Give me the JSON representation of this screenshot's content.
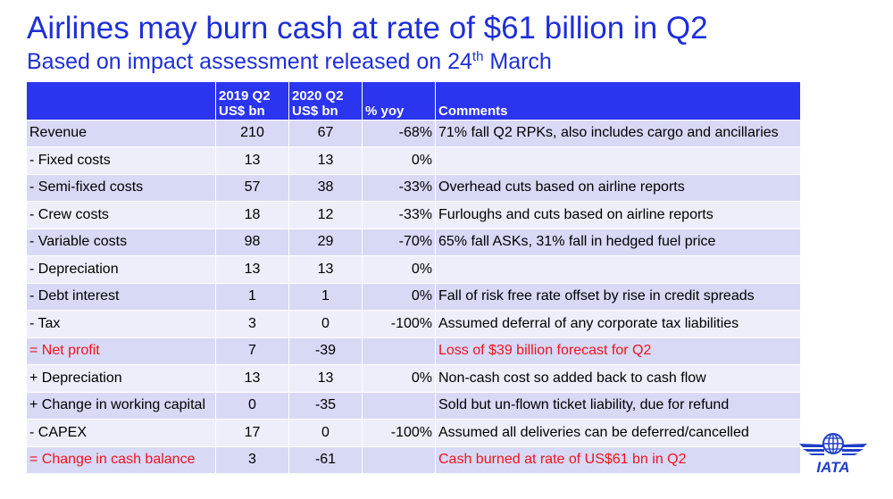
{
  "title": "Airlines may burn cash at rate of $61 billion in Q2",
  "subtitle": {
    "text": "Based on impact assessment released on 24",
    "sup": "th",
    "rest": " March"
  },
  "table": {
    "headers": {
      "col2019_line1": "2019 Q2",
      "col2019_line2": "US$ bn",
      "col2020_line1": "2020 Q2",
      "col2020_line2": "US$ bn",
      "yoy": "% yoy",
      "comments": "Comments"
    },
    "rows": [
      {
        "item": "Revenue",
        "q2_2019": "210",
        "q2_2020": "67",
        "yoy": "-68%",
        "comment": "71% fall Q2 RPKs, also includes cargo and ancillaries"
      },
      {
        "item": "- Fixed costs",
        "q2_2019": "13",
        "q2_2020": "13",
        "yoy": "0%",
        "comment": ""
      },
      {
        "item": "- Semi-fixed costs",
        "q2_2019": "57",
        "q2_2020": "38",
        "yoy": "-33%",
        "comment": "Overhead cuts based on airline reports"
      },
      {
        "item": "- Crew costs",
        "q2_2019": "18",
        "q2_2020": "12",
        "yoy": "-33%",
        "comment": "Furloughs and cuts based on airline reports"
      },
      {
        "item": "- Variable costs",
        "q2_2019": "98",
        "q2_2020": "29",
        "yoy": "-70%",
        "comment": "65% fall ASKs, 31% fall in hedged fuel price"
      },
      {
        "item": "- Depreciation",
        "q2_2019": "13",
        "q2_2020": "13",
        "yoy": "0%",
        "comment": ""
      },
      {
        "item": "- Debt interest",
        "q2_2019": "1",
        "q2_2020": "1",
        "yoy": "0%",
        "comment": "Fall of risk free rate offset by rise in credit spreads"
      },
      {
        "item": "- Tax",
        "q2_2019": "3",
        "q2_2020": "0",
        "yoy": "-100%",
        "comment": "Assumed deferral of any corporate tax liabilities"
      },
      {
        "item": "= Net profit",
        "q2_2019": "7",
        "q2_2020": "-39",
        "yoy": "",
        "comment": "Loss of $39 billion forecast for Q2"
      },
      {
        "item": "+ Depreciation",
        "q2_2019": "13",
        "q2_2020": "13",
        "yoy": "0%",
        "comment": "Non-cash cost so added back to cash flow"
      },
      {
        "item": "+ Change in working capital",
        "q2_2019": "0",
        "q2_2020": "-35",
        "yoy": "",
        "comment": "Sold but un-flown ticket liability, due for refund"
      },
      {
        "item": "- CAPEX",
        "q2_2019": "17",
        "q2_2020": "0",
        "yoy": "-100%",
        "comment": "Assumed all deliveries can be deferred/cancelled"
      },
      {
        "item": "= Change in cash balance",
        "q2_2019": "3",
        "q2_2020": "-61",
        "yoy": "",
        "comment": "Cash burned at rate of US$61 bn in Q2"
      }
    ]
  },
  "logo": {
    "text": "IATA",
    "icon": "iata-globe-wings-icon",
    "color": "#1e3fc8"
  },
  "colors": {
    "title": "#1e2fd8",
    "header_bg": "#2b34ee",
    "row_dark": "#d7d9f5",
    "row_light": "#eeeefb",
    "highlight": "#f0141e"
  }
}
